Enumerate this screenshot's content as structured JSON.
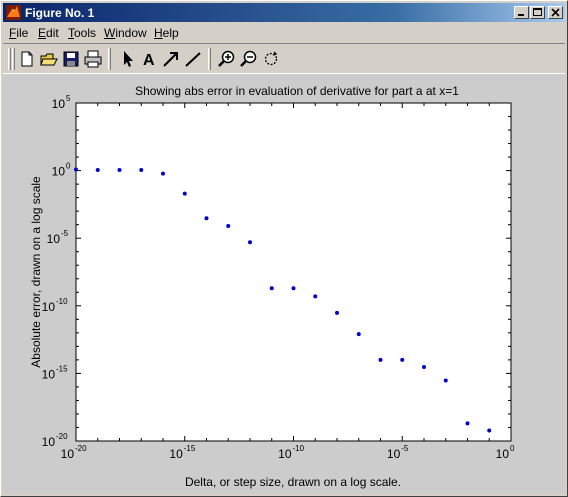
{
  "window": {
    "title": "Figure No. 1"
  },
  "menu": [
    {
      "label": "File",
      "mnemonic": "F",
      "rest": "ile"
    },
    {
      "label": "Edit",
      "mnemonic": "E",
      "rest": "dit"
    },
    {
      "label": "Tools",
      "mnemonic": "T",
      "rest": "ools"
    },
    {
      "label": "Window",
      "mnemonic": "W",
      "rest": "indow"
    },
    {
      "label": "Help",
      "mnemonic": "H",
      "rest": "elp"
    }
  ],
  "toolbar": {
    "icons": [
      "new-file-icon",
      "open-folder-icon",
      "save-icon",
      "print-icon",
      "select-arrow-icon",
      "insert-text-icon",
      "insert-arrow-icon",
      "insert-line-icon",
      "zoom-in-icon",
      "zoom-out-icon",
      "rotate-icon"
    ],
    "text_tool_glyph": "A"
  },
  "colors": {
    "marker": "#0000cc",
    "figure_bg": "#cccccc",
    "axes_bg": "#ffffff",
    "titlebar_start": "#0a246a",
    "titlebar_end": "#a6caf0"
  },
  "chart_data": {
    "type": "scatter",
    "title": "Showing abs error in evaluation of derivative for part a at x=1",
    "xlabel": "Delta, or step size, drawn on a log scale.",
    "ylabel": "Absolute error, drawn on a log scale",
    "xscale": "log",
    "yscale": "log",
    "xlim": [
      1e-20,
      1
    ],
    "ylim": [
      1e-20,
      100000.0
    ],
    "x_ticks": [
      {
        "base": "10",
        "exp": "-20"
      },
      {
        "base": "10",
        "exp": "-15"
      },
      {
        "base": "10",
        "exp": "-10"
      },
      {
        "base": "10",
        "exp": "-5"
      },
      {
        "base": "10",
        "exp": "0"
      }
    ],
    "y_ticks": [
      {
        "base": "10",
        "exp": "-20"
      },
      {
        "base": "10",
        "exp": "-15"
      },
      {
        "base": "10",
        "exp": "-10"
      },
      {
        "base": "10",
        "exp": "-5"
      },
      {
        "base": "10",
        "exp": "0"
      },
      {
        "base": "10",
        "exp": "5"
      }
    ],
    "grid": false,
    "marker": "dot",
    "points": [
      {
        "x": 1e-20,
        "y": 1.2
      },
      {
        "x": 1e-19,
        "y": 1.1
      },
      {
        "x": 1e-18,
        "y": 1.1
      },
      {
        "x": 1e-17,
        "y": 1.1
      },
      {
        "x": 1e-16,
        "y": 0.6
      },
      {
        "x": 1e-15,
        "y": 0.02
      },
      {
        "x": 1e-14,
        "y": 0.0003
      },
      {
        "x": 1e-13,
        "y": 8e-05
      },
      {
        "x": 1e-12,
        "y": 5e-06
      },
      {
        "x": 1e-11,
        "y": 2e-09
      },
      {
        "x": 1e-10,
        "y": 2e-09
      },
      {
        "x": 1e-09,
        "y": 5e-10
      },
      {
        "x": 1e-08,
        "y": 3e-11
      },
      {
        "x": 1e-07,
        "y": 8e-13
      },
      {
        "x": 1e-06,
        "y": 1e-14
      },
      {
        "x": 1e-05,
        "y": 1e-14
      },
      {
        "x": 0.0001,
        "y": 3e-15
      },
      {
        "x": 0.001,
        "y": 3e-16
      },
      {
        "x": 0.01,
        "y": 2e-19
      },
      {
        "x": 0.1,
        "y": 6e-20
      }
    ]
  }
}
